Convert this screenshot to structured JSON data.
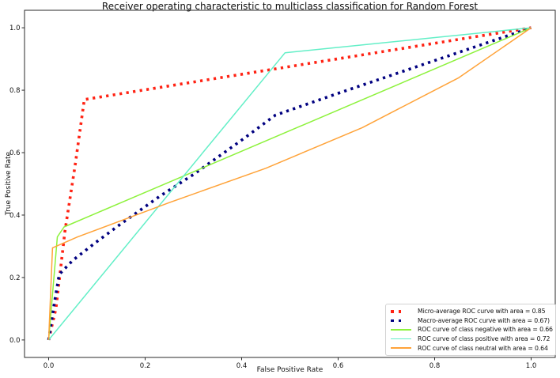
{
  "title": "Receiver operating characteristic to multiclass classification for Random Forest",
  "chart_data": {
    "type": "line",
    "title": "Receiver operating characteristic to multiclass classification for Random Forest",
    "xlabel": "False Positive Rate",
    "ylabel": "True Positive Rate",
    "xlim": [
      -0.05,
      1.05
    ],
    "ylim": [
      -0.056,
      1.056
    ],
    "x_tick_values": [
      0.0,
      0.2,
      0.4,
      0.6,
      0.8,
      1.0
    ],
    "y_tick_values": [
      0.0,
      0.2,
      0.4,
      0.6,
      0.8,
      1.0
    ],
    "grid": false,
    "legend_position": "lower right",
    "background_color": "#ffffff",
    "spine_color": "#2a2a2a",
    "series": [
      {
        "name": "Micro-average ROC curve with area = 0.85",
        "color": "#ff2213",
        "style": "dotted",
        "width": 3.6,
        "points": [
          [
            0,
            0
          ],
          [
            0.015,
            0.1
          ],
          [
            0.034,
            0.35
          ],
          [
            0.055,
            0.56
          ],
          [
            0.074,
            0.77
          ],
          [
            1,
            1
          ]
        ]
      },
      {
        "name": "Macro-average ROC curve with area = 0.67)",
        "color": "#000080",
        "style": "dotted",
        "width": 3.6,
        "points": [
          [
            0,
            0
          ],
          [
            0.012,
            0.12
          ],
          [
            0.022,
            0.21
          ],
          [
            0.05,
            0.255
          ],
          [
            0.1,
            0.315
          ],
          [
            0.15,
            0.372
          ],
          [
            0.23,
            0.46
          ],
          [
            0.3,
            0.53
          ],
          [
            0.4,
            0.64
          ],
          [
            0.47,
            0.72
          ],
          [
            0.6,
            0.79
          ],
          [
            0.8,
            0.895
          ],
          [
            1,
            1
          ]
        ]
      },
      {
        "name": "ROC curve of class negative with area = 0.66",
        "color": "#8df23c",
        "style": "solid",
        "width": 1.5,
        "points": [
          [
            0,
            0
          ],
          [
            0.018,
            0.33
          ],
          [
            0.032,
            0.362
          ],
          [
            1,
            1
          ]
        ]
      },
      {
        "name": "ROC curve of class positive with area = 0.72",
        "color": "#63efc7",
        "style": "solid",
        "width": 1.5,
        "points": [
          [
            0,
            0
          ],
          [
            0.49,
            0.92
          ],
          [
            1,
            1
          ]
        ]
      },
      {
        "name": "ROC curve of class neutral with area = 0.64",
        "color": "#ffa339",
        "style": "solid",
        "width": 1.5,
        "points": [
          [
            0,
            0
          ],
          [
            0.008,
            0.295
          ],
          [
            0.06,
            0.33
          ],
          [
            0.25,
            0.44
          ],
          [
            0.45,
            0.55
          ],
          [
            0.65,
            0.68
          ],
          [
            0.85,
            0.84
          ],
          [
            1,
            1
          ]
        ]
      }
    ]
  }
}
